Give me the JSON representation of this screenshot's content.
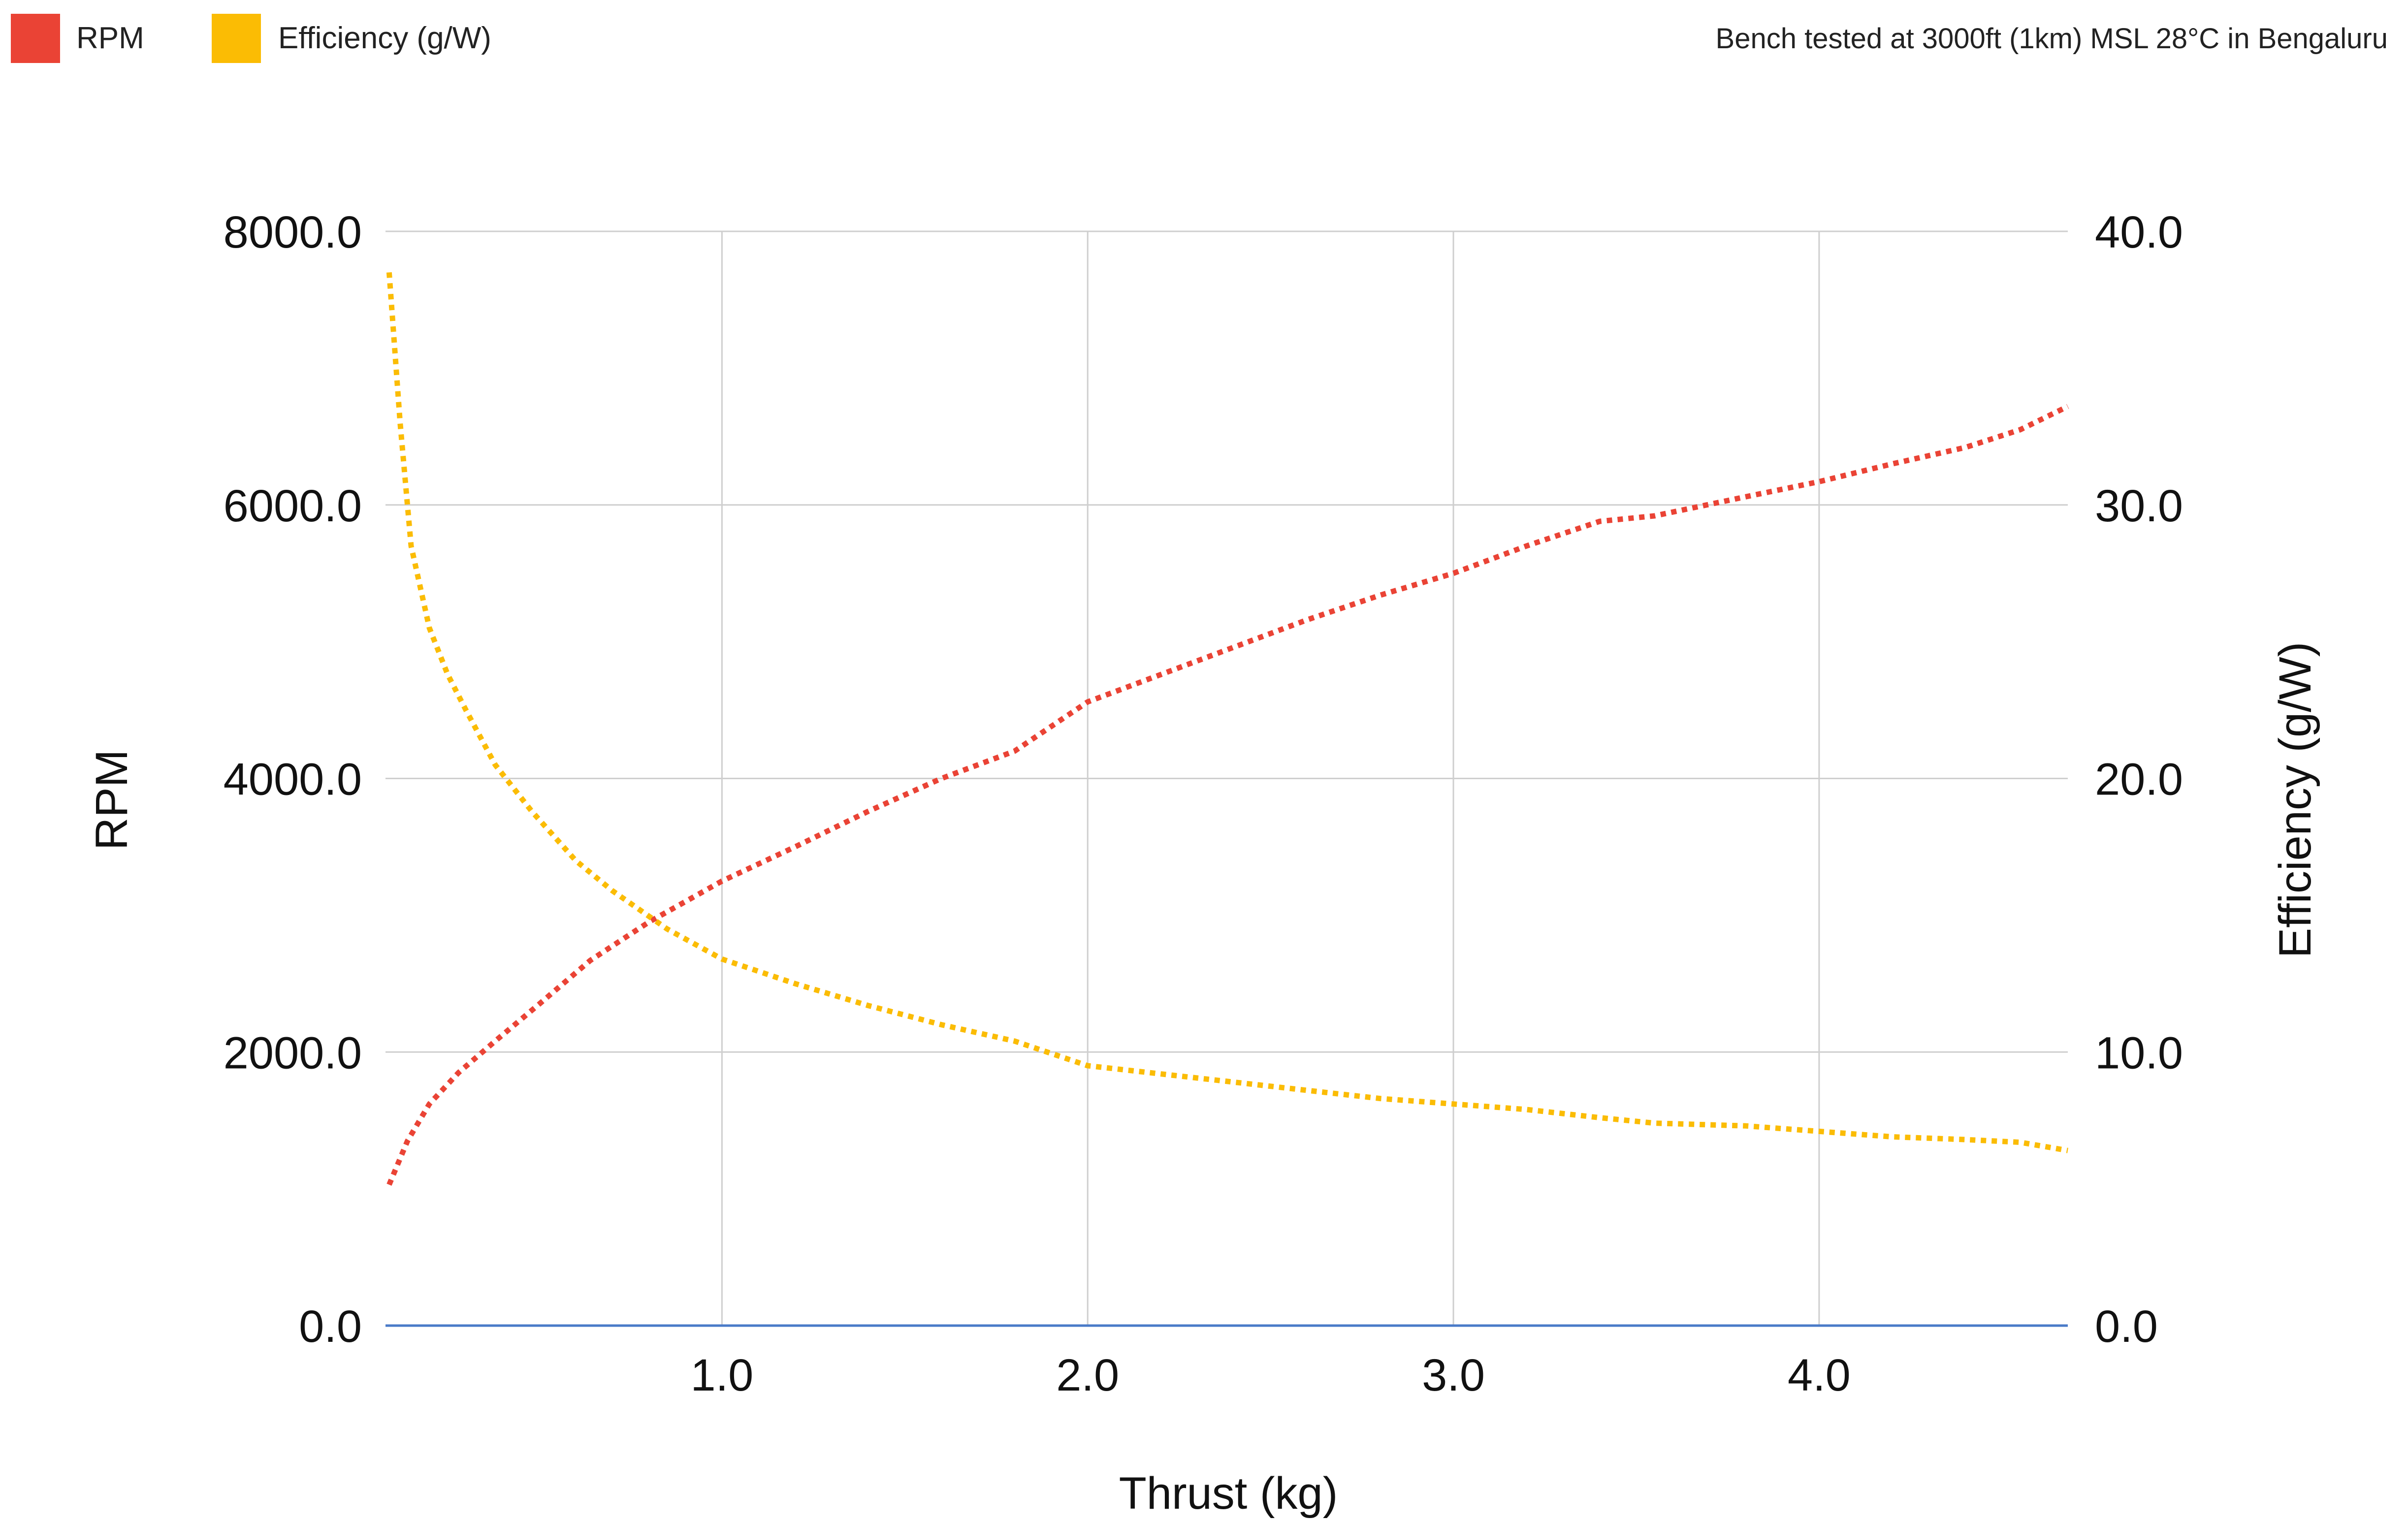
{
  "chart_data": {
    "type": "line",
    "note": "Bench tested at 3000ft (1km) MSL 28°C in Bengaluru",
    "xlabel": "Thrust (kg)",
    "ylabel": "RPM",
    "y2label": "Efficiency (g/W)",
    "xlim": [
      0.08,
      4.68
    ],
    "ylim": [
      0,
      8000
    ],
    "y2lim": [
      0,
      40
    ],
    "x_ticks": [
      "1.0",
      "2.0",
      "3.0",
      "4.0"
    ],
    "x_tick_values": [
      1,
      2,
      3,
      4
    ],
    "y_ticks": [
      "0.0",
      "2000.0",
      "4000.0",
      "6000.0",
      "8000.0"
    ],
    "y_tick_values": [
      0,
      2000,
      4000,
      6000,
      8000
    ],
    "y2_ticks": [
      "0.0",
      "10.0",
      "20.0",
      "30.0",
      "40.0"
    ],
    "y2_tick_values": [
      0,
      10,
      20,
      30,
      40
    ],
    "grid": true,
    "legend_position": "top-left",
    "series": [
      {
        "name": "RPM",
        "axis": "left",
        "color": "#ea4335",
        "style": "dotted",
        "x": [
          0.09,
          0.14,
          0.2,
          0.28,
          0.38,
          0.5,
          0.64,
          0.8,
          1.0,
          1.2,
          1.4,
          1.6,
          1.8,
          2.0,
          2.2,
          2.4,
          2.6,
          2.8,
          3.0,
          3.2,
          3.4,
          3.55,
          3.8,
          4.0,
          4.2,
          4.4,
          4.55,
          4.68
        ],
        "y": [
          1030,
          1350,
          1620,
          1850,
          2080,
          2350,
          2670,
          2950,
          3250,
          3500,
          3760,
          4000,
          4200,
          4560,
          4760,
          4960,
          5160,
          5340,
          5500,
          5700,
          5880,
          5920,
          6060,
          6170,
          6300,
          6420,
          6550,
          6720
        ]
      },
      {
        "name": "Efficiency (g/W)",
        "axis": "right",
        "color": "#fbbc04",
        "style": "dotted",
        "x": [
          0.09,
          0.12,
          0.15,
          0.2,
          0.25,
          0.3,
          0.38,
          0.48,
          0.6,
          0.7,
          0.85,
          1.0,
          1.2,
          1.4,
          1.6,
          1.8,
          2.0,
          2.2,
          2.4,
          2.6,
          2.8,
          3.0,
          3.2,
          3.4,
          3.55,
          3.8,
          4.0,
          4.2,
          4.4,
          4.55,
          4.68
        ],
        "y": [
          38.5,
          33.0,
          28.5,
          25.5,
          23.8,
          22.5,
          20.5,
          18.8,
          17.0,
          15.9,
          14.5,
          13.4,
          12.5,
          11.7,
          11.0,
          10.4,
          9.5,
          9.2,
          8.9,
          8.6,
          8.3,
          8.1,
          7.9,
          7.6,
          7.4,
          7.3,
          7.1,
          6.9,
          6.8,
          6.7,
          6.4
        ]
      }
    ]
  }
}
